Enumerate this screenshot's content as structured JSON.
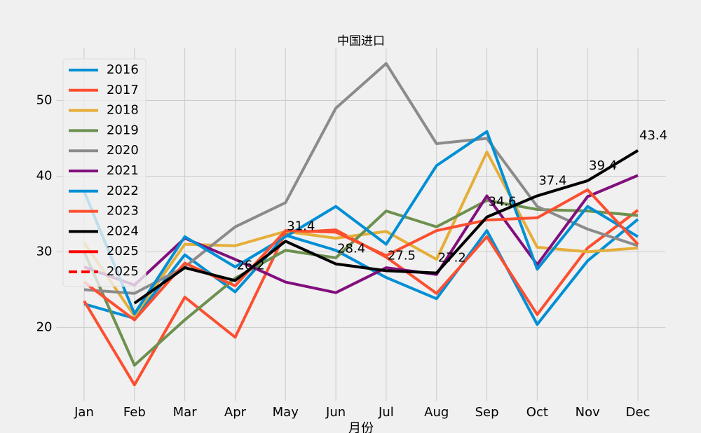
{
  "chart_data": {
    "type": "line",
    "title": "中国进口",
    "x_label": "月份",
    "categories": [
      "Jan",
      "Feb",
      "Mar",
      "Apr",
      "May",
      "Jun",
      "Jul",
      "Aug",
      "Sep",
      "Oct",
      "Nov",
      "Dec"
    ],
    "series": [
      {
        "name": "2016",
        "color": "#008fd5",
        "values": [
          23.1,
          21.2,
          29.6,
          24.7,
          32.2,
          30.2,
          26.6,
          23.8,
          32.8,
          20.4,
          28.8,
          34.3
        ]
      },
      {
        "name": "2017",
        "color": "#fc4f30",
        "values": [
          23.5,
          12.4,
          24.0,
          18.7,
          32.5,
          32.9,
          29.3,
          24.5,
          32.0,
          21.7,
          30.5,
          35.5
        ]
      },
      {
        "name": "2018",
        "color": "#e5ae38",
        "values": [
          31.2,
          21.5,
          31.0,
          30.8,
          32.7,
          31.8,
          32.7,
          29.0,
          43.2,
          30.6,
          30.0,
          30.5
        ]
      },
      {
        "name": "2019",
        "color": "#6d904f",
        "values": [
          30.0,
          15.0,
          21.0,
          26.5,
          30.2,
          29.2,
          35.4,
          33.3,
          36.8,
          35.6,
          35.4,
          34.8
        ]
      },
      {
        "name": "2020",
        "color": "#8b8b8b",
        "values": [
          25.0,
          24.5,
          28.0,
          33.3,
          36.5,
          49.0,
          54.9,
          44.3,
          45.0,
          36.0,
          33.0,
          30.8
        ]
      },
      {
        "name": "2021",
        "color": "#810f7c",
        "values": [
          28.0,
          25.6,
          31.8,
          29.0,
          26.0,
          24.6,
          27.9,
          27.0,
          37.4,
          28.3,
          37.3,
          40.1
        ]
      },
      {
        "name": "2022",
        "color": "#008fd5",
        "values": [
          38.0,
          21.8,
          32.0,
          28.0,
          32.0,
          36.0,
          31.0,
          41.4,
          45.9,
          27.7,
          36.0,
          32.0
        ]
      },
      {
        "name": "2023",
        "color": "#fc4f30",
        "values": [
          26.0,
          21.0,
          28.5,
          25.5,
          32.8,
          32.6,
          29.5,
          32.8,
          34.2,
          34.5,
          38.2,
          31.0
        ]
      },
      {
        "name": "2024",
        "color": "#000000",
        "values": [
          null,
          23.2,
          27.9,
          26.2,
          31.4,
          28.4,
          27.5,
          27.2,
          34.6,
          37.4,
          39.4,
          43.4
        ],
        "value_labels": [
          null,
          null,
          null,
          "26.2",
          "31.4",
          "28.4",
          "27.5",
          "27.2",
          "34.6",
          "37.4",
          "39.4",
          "43.4"
        ]
      },
      {
        "name": "2025",
        "color": "#ff0000",
        "values": [
          null,
          null,
          null,
          null,
          null,
          null,
          null,
          null,
          null,
          null,
          null,
          null
        ]
      },
      {
        "name": "2025",
        "color": "#ff0000",
        "dashed": true,
        "values": [
          null,
          null,
          null,
          null,
          null,
          null,
          null,
          null,
          null,
          null,
          null,
          null
        ]
      }
    ],
    "ylim": [
      10.3,
      57.0
    ],
    "yticks": [
      20,
      30,
      40,
      50
    ],
    "grid": true,
    "legend": "upper left"
  }
}
